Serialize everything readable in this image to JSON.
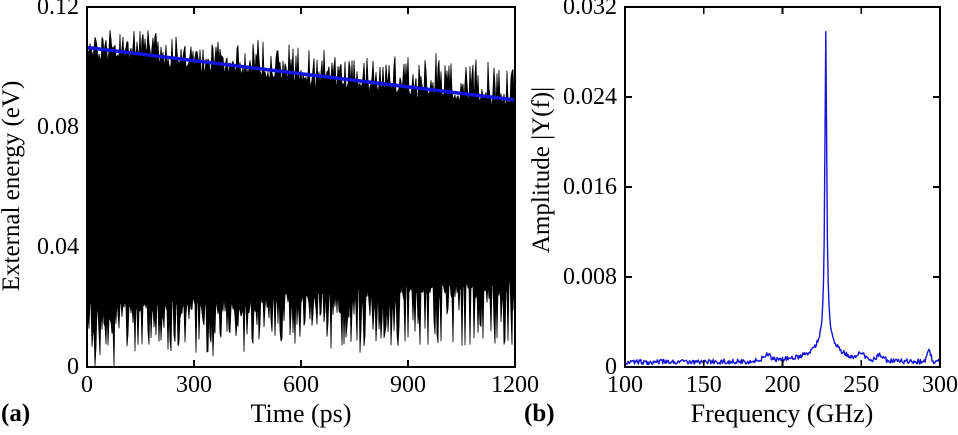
{
  "figure": {
    "background": "#ffffff",
    "panel_a_label": "(a)",
    "panel_b_label": "(b)",
    "axis_color": "#000000"
  },
  "chart_data": [
    {
      "id": "time-domain-panel-a",
      "type": "line",
      "title": "",
      "xlabel": "Time (ps)",
      "ylabel": "External energy (eV)",
      "xlim": [
        0,
        1200
      ],
      "ylim": [
        0,
        0.12
      ],
      "xticks": [
        0,
        300,
        600,
        900,
        1200
      ],
      "xtick_labels": [
        "0",
        "300",
        "600",
        "900",
        "1200"
      ],
      "yticks": [
        0,
        0.04,
        0.08,
        0.12
      ],
      "ytick_labels": [
        "0",
        "0.04",
        "0.08",
        "0.12"
      ],
      "grid": false,
      "box": true,
      "tick_direction": "in",
      "series": [
        {
          "name": "external-energy-signal",
          "type": "noisy-oscillation-band",
          "color": "#000000",
          "description": "dense fast oscillation of external energy filling the band between envelopes; band narrows over time",
          "top_envelope_eV": {
            "start": 0.1035,
            "end": 0.0865
          },
          "top_spike_max_eV": {
            "start": 0.113,
            "end": 0.101
          },
          "bottom_envelope_eV": {
            "start": 0.0205,
            "end": 0.0285
          },
          "bottom_spike_min_eV": {
            "start": 0.004,
            "end": 0.006
          },
          "near_zero_spikes_ps": [
            22,
            76
          ]
        },
        {
          "name": "upper-envelope-fit",
          "type": "straight-line",
          "color": "#1414dd",
          "linewidth": 3.5,
          "points": [
            [
              0,
              0.1065
            ],
            [
              1200,
              0.089
            ]
          ]
        }
      ]
    },
    {
      "id": "spectrum-panel-b",
      "type": "line",
      "title": "",
      "xlabel": "Frequency (GHz)",
      "ylabel": "Amplitude |Y(f)|",
      "xlim": [
        100,
        300
      ],
      "ylim": [
        0,
        0.032
      ],
      "xticks": [
        100,
        150,
        200,
        250,
        300
      ],
      "xtick_labels": [
        "100",
        "150",
        "200",
        "250",
        "300"
      ],
      "yticks": [
        0,
        0.008,
        0.016,
        0.024,
        0.032
      ],
      "ytick_labels": [
        "0",
        "0.008",
        "0.016",
        "0.024",
        "0.032"
      ],
      "grid": false,
      "box": true,
      "tick_direction": "in",
      "series": [
        {
          "name": "fft-amplitude-spectrum",
          "color": "#1414dd",
          "linewidth": 1.4,
          "peak": {
            "frequency_ghz": 227.5,
            "amplitude": 0.03
          },
          "noise_floor": 0.0002,
          "noise_amplitude": 0.00045,
          "sample_step_ghz": 0.5,
          "components": [
            {
              "type": "lorentzian",
              "center": 227.5,
              "hwhm": 0.7,
              "amplitude": 0.0272
            },
            {
              "type": "lorentzian",
              "center": 227.5,
              "hwhm": 5.0,
              "amplitude": 0.0013
            },
            {
              "type": "lorentzian",
              "center": 227.5,
              "hwhm": 14.0,
              "amplitude": 0.0009
            },
            {
              "type": "gaussian",
              "center": 190.0,
              "sigma": 2.5,
              "amplitude": 0.0005
            },
            {
              "type": "gaussian",
              "center": 250.0,
              "sigma": 2.0,
              "amplitude": 0.0005
            },
            {
              "type": "gaussian",
              "center": 262.0,
              "sigma": 2.0,
              "amplitude": 0.0005
            },
            {
              "type": "gaussian",
              "center": 293.0,
              "sigma": 1.2,
              "amplitude": 0.0009
            }
          ]
        }
      ]
    }
  ]
}
